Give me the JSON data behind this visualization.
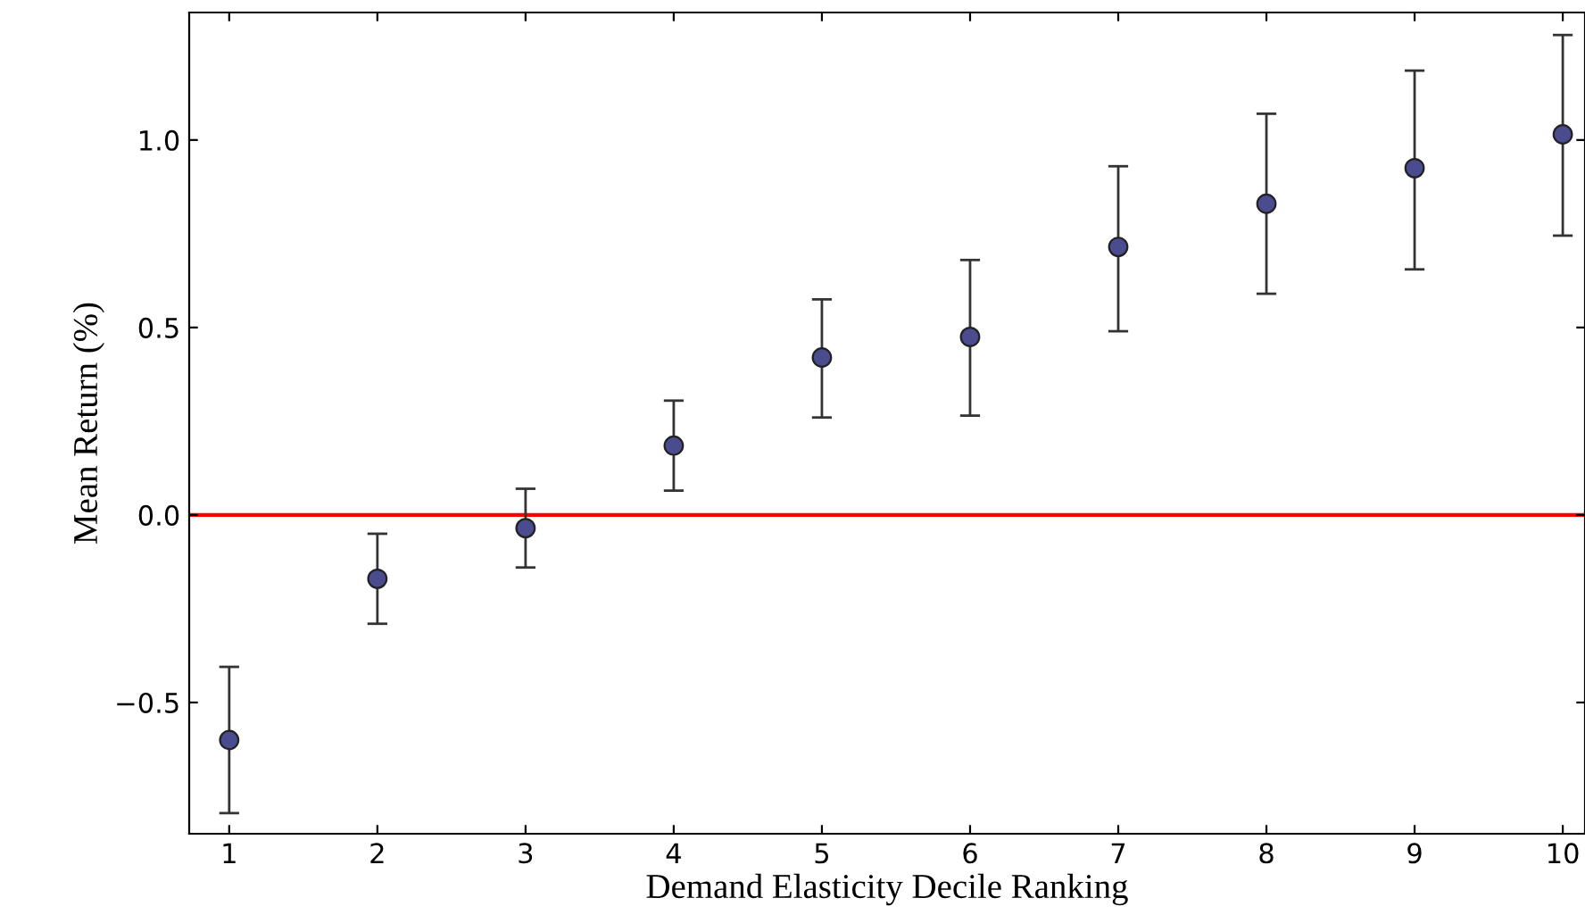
{
  "chart_data": {
    "type": "scatter",
    "xlabel": "Demand Elasticity Decile Ranking",
    "ylabel": "Mean Return (%)",
    "x": [
      1,
      2,
      3,
      4,
      5,
      6,
      7,
      8,
      9,
      10
    ],
    "series": [
      {
        "color": "#4b4b8f",
        "values": [
          -0.6,
          -0.17,
          -0.035,
          0.185,
          0.42,
          0.475,
          0.715,
          0.83,
          0.925,
          1.015
        ],
        "errors": [
          [
            -0.795,
            -0.405
          ],
          [
            -0.29,
            -0.05
          ],
          [
            -0.14,
            0.07
          ],
          [
            0.065,
            0.305
          ],
          [
            0.26,
            0.575
          ],
          [
            0.265,
            0.68
          ],
          [
            0.49,
            0.93
          ],
          [
            0.59,
            1.07
          ],
          [
            0.655,
            1.185
          ],
          [
            0.745,
            1.28
          ]
        ]
      }
    ],
    "marker": "circle",
    "grid": false,
    "legend": false,
    "xlim": [
      0.73,
      10.15
    ],
    "ylim": [
      -0.85,
      1.34
    ],
    "xticks": [
      1,
      2,
      3,
      4,
      5,
      6,
      7,
      8,
      9,
      10
    ],
    "yticks": [
      {
        "value": -0.5,
        "label": "−0.5"
      },
      {
        "value": 0.0,
        "label": "0.0"
      },
      {
        "value": 0.5,
        "label": "0.5"
      },
      {
        "value": 1.0,
        "label": "1.0"
      }
    ],
    "ref_lines": [
      {
        "axis": "y",
        "value": 0,
        "color": "#ff0000",
        "line_style": "solid"
      }
    ]
  }
}
